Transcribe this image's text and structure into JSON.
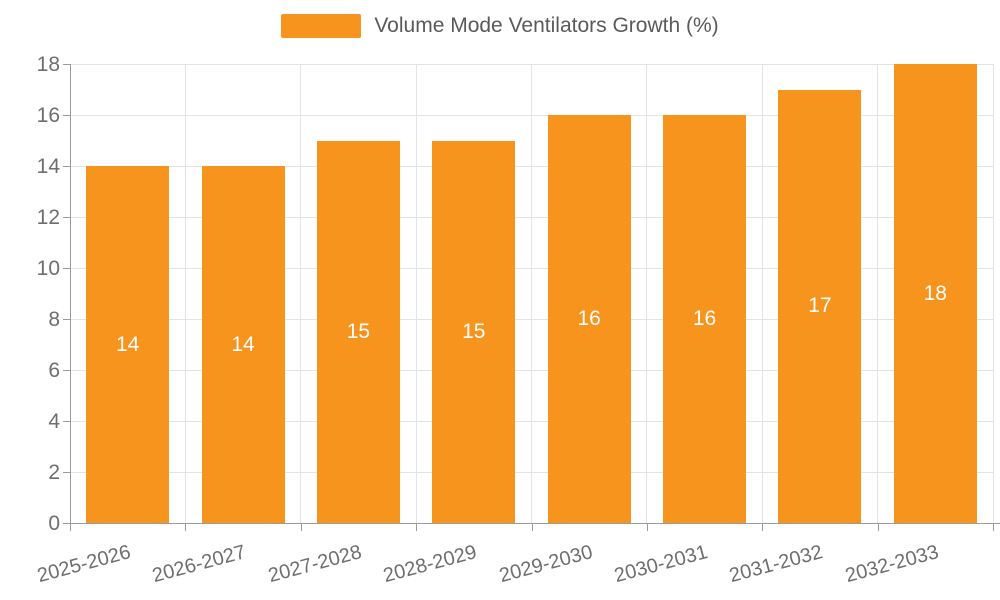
{
  "chart_data": {
    "type": "bar",
    "title": "",
    "xlabel": "",
    "ylabel": "",
    "categories": [
      "2025-2026",
      "2026-2027",
      "2027-2028",
      "2028-2029",
      "2029-2030",
      "2030-2031",
      "2031-2032",
      "2032-2033"
    ],
    "series": [
      {
        "name": "Volume Mode Ventilators Growth (%)",
        "values": [
          14,
          14,
          15,
          15,
          16,
          16,
          17,
          18
        ]
      }
    ],
    "bar_value_labels": [
      "14",
      "14",
      "15",
      "15",
      "16",
      "16",
      "17",
      "18"
    ],
    "ylim": [
      0,
      18
    ],
    "ytick_interval": 2,
    "yticks": [
      "0",
      "2",
      "4",
      "6",
      "8",
      "10",
      "12",
      "14",
      "16",
      "18"
    ],
    "grid": "horizontal and vertical gridlines on",
    "legend_position": "top-center",
    "x_label_rotation_deg": -15,
    "colors": {
      "bar": "#f7941e",
      "bar_value_label": "#ffffff",
      "axis_line": "#9b9b9b",
      "gridline": "#e3e3e3",
      "tick_label": "#6e6e6e",
      "legend_text": "#5a5a5a",
      "background": "#ffffff"
    }
  }
}
